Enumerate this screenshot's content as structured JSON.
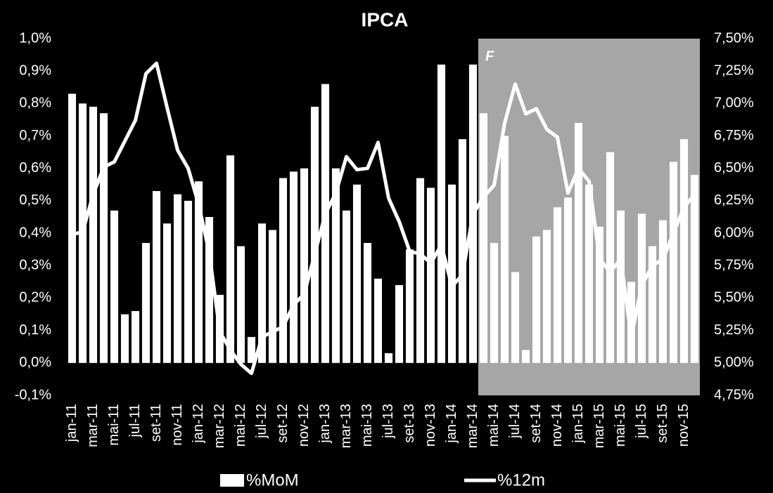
{
  "chart_data": {
    "type": "bar_line",
    "title": "IPCA",
    "categories": [
      "jan-11",
      null,
      "mar-11",
      null,
      "mai-11",
      null,
      "jul-11",
      null,
      "set-11",
      null,
      "nov-11",
      null,
      "jan-12",
      null,
      "mar-12",
      null,
      "mai-12",
      null,
      "jul-12",
      null,
      "set-12",
      null,
      "nov-12",
      null,
      "jan-13",
      null,
      "mar-13",
      null,
      "mai-13",
      null,
      "jul-13",
      null,
      "set-13",
      null,
      "nov-13",
      null,
      "jan-14",
      null,
      "mar-14",
      null,
      "mai-14",
      null,
      "jul-14",
      null,
      "set-14",
      null,
      "nov-14",
      null,
      "jan-15",
      null,
      "mar-15",
      null,
      "mai-15",
      null,
      "jul-15",
      null,
      "set-15",
      null,
      "nov-15",
      null
    ],
    "series": [
      {
        "name": "%MoM",
        "color": "#ffffff",
        "values": [
          0.83,
          0.8,
          0.79,
          0.77,
          0.47,
          0.15,
          0.16,
          0.37,
          0.53,
          0.43,
          0.52,
          0.5,
          0.56,
          0.45,
          0.21,
          0.64,
          0.36,
          0.08,
          0.43,
          0.41,
          0.57,
          0.59,
          0.6,
          0.79,
          0.86,
          0.6,
          0.47,
          0.55,
          0.37,
          0.26,
          0.03,
          0.24,
          0.35,
          0.57,
          0.54,
          0.92,
          0.55,
          0.69,
          0.92,
          0.77,
          0.37,
          0.7,
          0.28,
          0.04,
          0.39,
          0.41,
          0.48,
          0.51,
          0.74,
          0.55,
          0.42,
          0.65,
          0.47,
          0.25,
          0.46,
          0.36,
          0.44,
          0.62,
          0.69,
          0.58
        ]
      },
      {
        "name": "%12m",
        "color": "#ffffff",
        "axis": "y2",
        "values": [
          5.99,
          6.01,
          6.3,
          6.51,
          6.55,
          6.71,
          6.87,
          7.23,
          7.31,
          6.97,
          6.64,
          6.5,
          6.22,
          5.85,
          5.24,
          5.1,
          4.99,
          4.92,
          5.2,
          5.24,
          5.28,
          5.45,
          5.53,
          5.84,
          6.15,
          6.31,
          6.59,
          6.49,
          6.5,
          6.7,
          6.27,
          6.09,
          5.86,
          5.84,
          5.77,
          5.91,
          5.59,
          5.68,
          6.15,
          6.28,
          6.37,
          6.85,
          7.15,
          6.92,
          6.96,
          6.8,
          6.74,
          6.31,
          6.5,
          6.4,
          5.8,
          5.7,
          5.8,
          5.2,
          5.6,
          5.75,
          5.8,
          6.0,
          6.2,
          6.3
        ]
      }
    ],
    "ylim": [
      -0.1,
      1.0
    ],
    "yticks": [
      {
        "value": -0.1,
        "label": "-0,1%"
      },
      {
        "value": 0,
        "label": "0,0%"
      },
      {
        "value": 0.1,
        "label": "0,1%"
      },
      {
        "value": 0.2,
        "label": "0,2%"
      },
      {
        "value": 0.3,
        "label": "0,3%"
      },
      {
        "value": 0.4,
        "label": "0,4%"
      },
      {
        "value": 0.5,
        "label": "0,5%"
      },
      {
        "value": 0.6,
        "label": "0,6%"
      },
      {
        "value": 0.7,
        "label": "0,7%"
      },
      {
        "value": 0.8,
        "label": "0,8%"
      },
      {
        "value": 0.9,
        "label": "0,9%"
      },
      {
        "value": 1.0,
        "label": "1,0%"
      }
    ],
    "y2lim": [
      4.75,
      7.5
    ],
    "y2ticks": [
      {
        "value": 4.75,
        "label": "4,75%"
      },
      {
        "value": 5.0,
        "label": "5,00%"
      },
      {
        "value": 5.25,
        "label": "5,25%"
      },
      {
        "value": 5.5,
        "label": "5,50%"
      },
      {
        "value": 5.75,
        "label": "5,75%"
      },
      {
        "value": 6.0,
        "label": "6,00%"
      },
      {
        "value": 6.25,
        "label": "6,25%"
      },
      {
        "value": 6.5,
        "label": "6,50%"
      },
      {
        "value": 6.75,
        "label": "6,75%"
      },
      {
        "value": 7.0,
        "label": "7,00%"
      },
      {
        "value": 7.25,
        "label": "7,25%"
      },
      {
        "value": 7.5,
        "label": "7,50%"
      }
    ],
    "annotation": "F"
  }
}
